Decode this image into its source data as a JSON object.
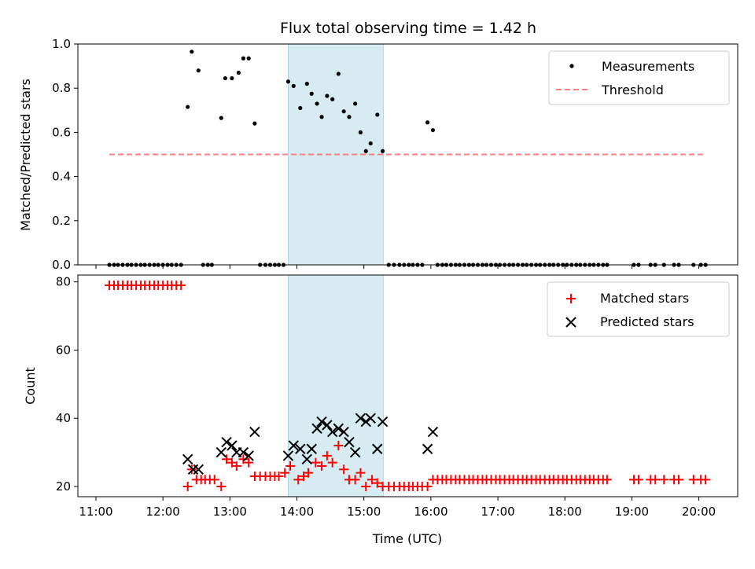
{
  "chart_data": {
    "title": "Flux total observing time = 1.42 h",
    "xlabel": "Time (UTC)",
    "x_unit": "hours (UTC)",
    "xlim": [
      10.73,
      20.58
    ],
    "xticks": [
      {
        "v": 11,
        "label": "11:00"
      },
      {
        "v": 12,
        "label": "12:00"
      },
      {
        "v": 13,
        "label": "13:00"
      },
      {
        "v": 14,
        "label": "14:00"
      },
      {
        "v": 15,
        "label": "15:00"
      },
      {
        "v": 16,
        "label": "16:00"
      },
      {
        "v": 17,
        "label": "17:00"
      },
      {
        "v": 18,
        "label": "18:00"
      },
      {
        "v": 19,
        "label": "19:00"
      },
      {
        "v": 20,
        "label": "20:00"
      }
    ],
    "shaded_span": {
      "x_start": 13.87,
      "x_end": 15.29,
      "color": "#add8e6"
    },
    "panels": [
      {
        "type": "scatter",
        "ylabel": "Matched/Predicted stars",
        "ylim": [
          0,
          1.0
        ],
        "yticks": [
          "0.0",
          "0.2",
          "0.4",
          "0.6",
          "0.8",
          "1.0"
        ],
        "legend_position": "top-right",
        "series": [
          {
            "name": "Measurements",
            "marker": "dot",
            "color": "#000000",
            "x": [
              11.2,
              11.27,
              11.33,
              11.4,
              11.47,
              11.53,
              11.6,
              11.67,
              11.73,
              11.8,
              11.87,
              11.93,
              12.0,
              12.07,
              12.13,
              12.2,
              12.27,
              12.37,
              12.43,
              12.53,
              12.6,
              12.67,
              12.73,
              12.87,
              12.93,
              13.03,
              13.13,
              13.2,
              13.28,
              13.37,
              13.45,
              13.53,
              13.6,
              13.67,
              13.73,
              13.8,
              13.87,
              13.95,
              14.05,
              14.15,
              14.22,
              14.3,
              14.37,
              14.45,
              14.53,
              14.62,
              14.7,
              14.78,
              14.87,
              14.95,
              15.03,
              15.1,
              15.2,
              15.28,
              15.37,
              15.45,
              15.53,
              15.6,
              15.67,
              15.73,
              15.8,
              15.87,
              15.95,
              16.03,
              16.1,
              16.17,
              16.23,
              16.3,
              16.37,
              16.43,
              16.5,
              16.57,
              16.63,
              16.7,
              16.77,
              16.83,
              16.9,
              16.97,
              17.03,
              17.1,
              17.17,
              17.23,
              17.3,
              17.37,
              17.43,
              17.5,
              17.57,
              17.63,
              17.7,
              17.77,
              17.83,
              17.9,
              17.97,
              18.03,
              18.1,
              18.17,
              18.23,
              18.3,
              18.37,
              18.43,
              18.5,
              18.57,
              18.63,
              19.03,
              19.1,
              19.28,
              19.35,
              19.48,
              19.63,
              19.7,
              19.92,
              20.03,
              20.1
            ],
            "y": [
              0.0,
              0.0,
              0.0,
              0.0,
              0.0,
              0.0,
              0.0,
              0.0,
              0.0,
              0.0,
              0.0,
              0.0,
              0.0,
              0.0,
              0.0,
              0.0,
              0.0,
              0.715,
              0.965,
              0.88,
              0.0,
              0.0,
              0.0,
              0.665,
              0.845,
              0.845,
              0.87,
              0.935,
              0.935,
              0.64,
              0.0,
              0.0,
              0.0,
              0.0,
              0.0,
              0.0,
              0.83,
              0.81,
              0.71,
              0.82,
              0.775,
              0.73,
              0.67,
              0.765,
              0.75,
              0.865,
              0.695,
              0.67,
              0.73,
              0.6,
              0.515,
              0.55,
              0.68,
              0.515,
              0.0,
              0.0,
              0.0,
              0.0,
              0.0,
              0.0,
              0.0,
              0.0,
              0.645,
              0.61,
              0.0,
              0.0,
              0.0,
              0.0,
              0.0,
              0.0,
              0.0,
              0.0,
              0.0,
              0.0,
              0.0,
              0.0,
              0.0,
              0.0,
              0.0,
              0.0,
              0.0,
              0.0,
              0.0,
              0.0,
              0.0,
              0.0,
              0.0,
              0.0,
              0.0,
              0.0,
              0.0,
              0.0,
              0.0,
              0.0,
              0.0,
              0.0,
              0.0,
              0.0,
              0.0,
              0.0,
              0.0,
              0.0,
              0.0,
              0.0,
              0.0,
              0.0,
              0.0,
              0.0,
              0.0,
              0.0,
              0.0,
              0.0,
              0.0
            ]
          },
          {
            "name": "Threshold",
            "type": "line",
            "style": "dashed",
            "color": "#ff7f7f",
            "x": [
              11.2,
              20.08
            ],
            "y": [
              0.5,
              0.5
            ]
          }
        ]
      },
      {
        "type": "scatter",
        "ylabel": "Count",
        "ylim": [
          17,
          82
        ],
        "yticks": [
          "20",
          "40",
          "60",
          "80"
        ],
        "legend_position": "top-right",
        "series": [
          {
            "name": "Matched stars",
            "marker": "plus",
            "color": "#ff0000",
            "x": [
              11.2,
              11.27,
              11.33,
              11.4,
              11.47,
              11.53,
              11.6,
              11.67,
              11.73,
              11.8,
              11.87,
              11.93,
              12.0,
              12.07,
              12.13,
              12.2,
              12.27,
              12.37,
              12.43,
              12.5,
              12.57,
              12.63,
              12.7,
              12.77,
              12.87,
              12.95,
              13.03,
              13.1,
              13.2,
              13.28,
              13.37,
              13.45,
              13.53,
              13.6,
              13.67,
              13.73,
              13.82,
              13.9,
              14.02,
              14.1,
              14.17,
              14.28,
              14.37,
              14.45,
              14.53,
              14.62,
              14.7,
              14.78,
              14.87,
              14.95,
              15.03,
              15.12,
              15.2,
              15.28,
              15.37,
              15.45,
              15.53,
              15.6,
              15.67,
              15.73,
              15.8,
              15.87,
              15.95,
              16.03,
              16.1,
              16.17,
              16.23,
              16.3,
              16.37,
              16.43,
              16.5,
              16.57,
              16.63,
              16.7,
              16.77,
              16.83,
              16.9,
              16.97,
              17.03,
              17.1,
              17.17,
              17.23,
              17.3,
              17.37,
              17.43,
              17.5,
              17.57,
              17.63,
              17.7,
              17.77,
              17.83,
              17.9,
              17.97,
              18.03,
              18.1,
              18.17,
              18.23,
              18.3,
              18.37,
              18.43,
              18.5,
              18.57,
              18.63,
              19.03,
              19.1,
              19.28,
              19.35,
              19.48,
              19.63,
              19.7,
              19.92,
              20.03,
              20.1
            ],
            "y": [
              79,
              79,
              79,
              79,
              79,
              79,
              79,
              79,
              79,
              79,
              79,
              79,
              79,
              79,
              79,
              79,
              79,
              20,
              25,
              22,
              22,
              22,
              22,
              22,
              20,
              28,
              27,
              26,
              28,
              27,
              23,
              23,
              23,
              23,
              23,
              23,
              24,
              26,
              22,
              23,
              24,
              27,
              26,
              29,
              27,
              32,
              25,
              22,
              22,
              24,
              20,
              22,
              21,
              20,
              20,
              20,
              20,
              20,
              20,
              20,
              20,
              20,
              20,
              22,
              22,
              22,
              22,
              22,
              22,
              22,
              22,
              22,
              22,
              22,
              22,
              22,
              22,
              22,
              22,
              22,
              22,
              22,
              22,
              22,
              22,
              22,
              22,
              22,
              22,
              22,
              22,
              22,
              22,
              22,
              22,
              22,
              22,
              22,
              22,
              22,
              22,
              22,
              22,
              22,
              22,
              22,
              22,
              22,
              22,
              22,
              22,
              22,
              22
            ]
          },
          {
            "name": "Predicted stars",
            "marker": "x",
            "color": "#000000",
            "x": [
              12.37,
              12.45,
              12.53,
              12.87,
              12.95,
              13.03,
              13.1,
              13.2,
              13.28,
              13.37,
              13.87,
              13.95,
              14.05,
              14.15,
              14.22,
              14.3,
              14.37,
              14.45,
              14.53,
              14.62,
              14.7,
              14.78,
              14.87,
              14.95,
              15.03,
              15.1,
              15.2,
              15.28,
              15.95,
              16.03
            ],
            "y": [
              28,
              25,
              25,
              30,
              33,
              32,
              30,
              30,
              29,
              36,
              29,
              32,
              31,
              28,
              31,
              37,
              39,
              38,
              36,
              37,
              36,
              33,
              30,
              40,
              39,
              40,
              31,
              39,
              31,
              36
            ]
          }
        ]
      }
    ]
  }
}
